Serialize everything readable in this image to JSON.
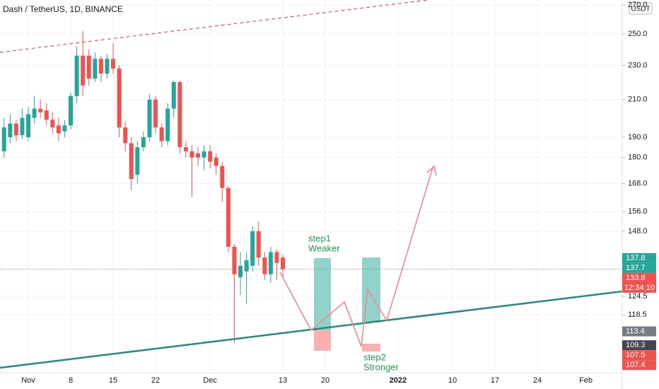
{
  "chart_data": {
    "type": "candlestick",
    "title": "Dash / TetherUS, 1D, BINANCE",
    "currency": "USDT",
    "log_scale": true,
    "up_color": "#26a69a",
    "down_color": "#ef5350",
    "x": [
      -4,
      -3,
      -2,
      -1,
      0,
      1,
      2,
      3,
      4,
      5,
      6,
      7,
      8,
      9,
      10,
      11,
      12,
      13,
      14,
      15,
      16,
      17,
      18,
      19,
      20,
      21,
      22,
      23,
      24,
      25,
      26,
      27,
      28,
      29,
      30,
      31,
      32,
      33,
      34,
      35,
      36,
      37,
      38,
      39,
      40,
      41,
      42
    ],
    "open": [
      183,
      190,
      197,
      191,
      190,
      200,
      205,
      204,
      199,
      196,
      193,
      196,
      212,
      236,
      236,
      222,
      234,
      225,
      234,
      228,
      195,
      187,
      172,
      185,
      190,
      210,
      195,
      188,
      205,
      220,
      185,
      183,
      182,
      180,
      183,
      180,
      176,
      166,
      142,
      131,
      133,
      135,
      148,
      138,
      132,
      140,
      138
    ],
    "high": [
      200,
      202,
      199,
      205,
      206,
      212,
      210,
      208,
      203,
      200,
      199,
      214,
      242,
      252,
      240,
      238,
      236,
      237,
      244,
      230,
      198,
      190,
      188,
      193,
      213,
      212,
      197,
      208,
      221,
      221,
      188,
      186,
      185,
      186,
      186,
      182,
      178,
      167,
      143,
      140,
      140,
      150,
      152,
      140,
      142,
      141,
      139
    ],
    "low": [
      180,
      187,
      188,
      189,
      188,
      197,
      200,
      196,
      192,
      188,
      190,
      194,
      208,
      212,
      218,
      220,
      220,
      222,
      225,
      190,
      183,
      165,
      168,
      183,
      188,
      192,
      185,
      186,
      200,
      182,
      180,
      162,
      176,
      174,
      175,
      172,
      160,
      140,
      110,
      125,
      122,
      133,
      135,
      130,
      129,
      130,
      131
    ],
    "close": [
      195,
      197,
      191,
      200,
      202,
      205,
      203,
      199,
      195,
      192,
      196,
      212,
      236,
      218,
      222,
      234,
      225,
      234,
      228,
      195,
      187,
      170,
      185,
      190,
      210,
      195,
      188,
      205,
      220,
      185,
      183,
      180,
      180,
      183,
      178,
      176,
      166,
      142,
      132,
      135,
      137,
      148,
      138,
      132,
      140,
      136,
      133.8
    ],
    "xlim": [
      -4.67,
      98
    ],
    "xticks": [
      {
        "value": 0,
        "label": "Nov"
      },
      {
        "value": 7,
        "label": "8"
      },
      {
        "value": 14,
        "label": "15"
      },
      {
        "value": 21,
        "label": "22"
      },
      {
        "value": 30,
        "label": "Dec"
      },
      {
        "value": 42,
        "label": "13"
      },
      {
        "value": 49,
        "label": "20"
      },
      {
        "value": 61,
        "label": "2022"
      },
      {
        "value": 70,
        "label": "10"
      },
      {
        "value": 77,
        "label": "17"
      },
      {
        "value": 84,
        "label": "24"
      },
      {
        "value": 92,
        "label": "Feb"
      }
    ],
    "ylim": [
      101.6,
      273.6
    ],
    "yticks": [
      {
        "value": 270,
        "label": "270.0"
      },
      {
        "value": 250,
        "label": "250.0"
      },
      {
        "value": 230,
        "label": "230.0"
      },
      {
        "value": 210,
        "label": "210.0"
      },
      {
        "value": 190,
        "label": "190.0"
      },
      {
        "value": 180,
        "label": "180.0"
      },
      {
        "value": 168,
        "label": "168.0"
      },
      {
        "value": 156,
        "label": "156.0"
      },
      {
        "value": 148,
        "label": "148.0"
      },
      {
        "value": 124.5,
        "label": "124.5"
      },
      {
        "value": 118.5,
        "label": "118.5"
      }
    ],
    "price_tags": [
      {
        "value": 137.8,
        "color": "#26a69a"
      },
      {
        "value": 137.7,
        "color": "#26a69a"
      },
      {
        "value": 133.8,
        "color": "#ef5350",
        "countdown": "12:34:10"
      },
      {
        "value": 113.4,
        "color": "#787b86"
      },
      {
        "value": 109.3,
        "color": "#434651"
      },
      {
        "value": 107.5,
        "color": "#ef5350"
      },
      {
        "value": 107.4,
        "color": "#ef5350"
      }
    ],
    "annotations": [
      {
        "lines": [
          "step1",
          "Weaker"
        ]
      },
      {
        "lines": [
          "step2",
          "Stronger"
        ]
      }
    ]
  }
}
